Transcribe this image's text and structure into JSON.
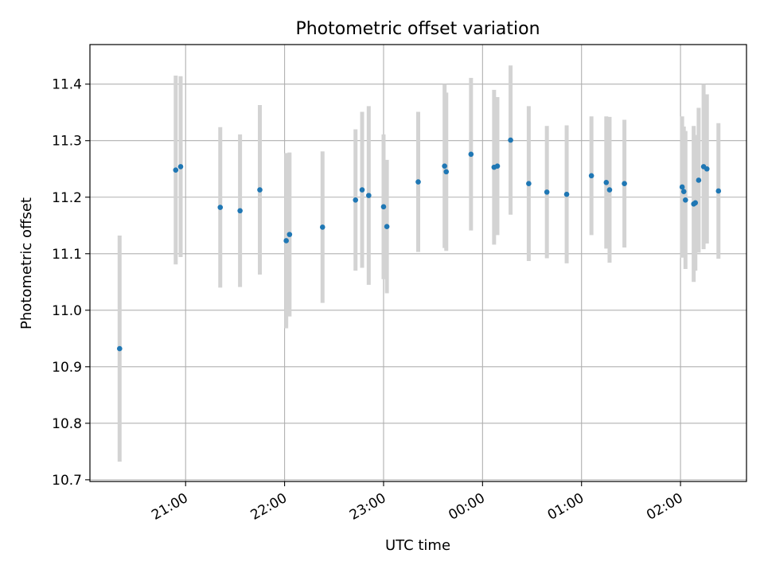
{
  "chart_data": {
    "type": "scatter",
    "title": "Photometric offset variation",
    "xlabel": "UTC time",
    "ylabel": "Photometric offset",
    "x_axis_kind": "time",
    "x_reference_date": "",
    "xlim": [
      "20:02",
      "26:40"
    ],
    "ylim": [
      10.697,
      11.47
    ],
    "grid": true,
    "legend": "none",
    "x_tick_labels": [
      "21:00",
      "22:00",
      "23:00",
      "00:00",
      "01:00",
      "02:00"
    ],
    "x_ticks": [
      "21:00",
      "22:00",
      "23:00",
      "24:00",
      "25:00",
      "26:00"
    ],
    "y_ticks": [
      10.7,
      10.8,
      10.9,
      11.0,
      11.1,
      11.2,
      11.3,
      11.4
    ],
    "y_tick_labels": [
      "10.7",
      "10.8",
      "10.9",
      "11.0",
      "11.1",
      "11.2",
      "11.3",
      "11.4"
    ],
    "colors": {
      "points": "#1f77b4",
      "errorbars": "#d3d3d3",
      "grid": "#b0b0b0"
    },
    "points": [
      {
        "t": "20:20",
        "y": 10.932,
        "err": 0.2
      },
      {
        "t": "20:54",
        "y": 11.248,
        "err": 0.167
      },
      {
        "t": "20:57",
        "y": 11.254,
        "err": 0.16
      },
      {
        "t": "21:21",
        "y": 11.182,
        "err": 0.142
      },
      {
        "t": "21:33",
        "y": 11.176,
        "err": 0.135
      },
      {
        "t": "21:45",
        "y": 11.213,
        "err": 0.15
      },
      {
        "t": "22:01",
        "y": 11.123,
        "err": 0.155
      },
      {
        "t": "22:03",
        "y": 11.134,
        "err": 0.145
      },
      {
        "t": "22:23",
        "y": 11.147,
        "err": 0.134
      },
      {
        "t": "22:43",
        "y": 11.195,
        "err": 0.125
      },
      {
        "t": "22:47",
        "y": 11.213,
        "err": 0.138
      },
      {
        "t": "22:51",
        "y": 11.203,
        "err": 0.158
      },
      {
        "t": "23:00",
        "y": 11.183,
        "err": 0.128
      },
      {
        "t": "23:02",
        "y": 11.148,
        "err": 0.118
      },
      {
        "t": "23:21",
        "y": 11.227,
        "err": 0.124
      },
      {
        "t": "23:37",
        "y": 11.255,
        "err": 0.145
      },
      {
        "t": "23:38",
        "y": 11.245,
        "err": 0.14
      },
      {
        "t": "23:53",
        "y": 11.276,
        "err": 0.135
      },
      {
        "t": "24:07",
        "y": 11.253,
        "err": 0.137
      },
      {
        "t": "24:09",
        "y": 11.255,
        "err": 0.122
      },
      {
        "t": "24:17",
        "y": 11.301,
        "err": 0.132
      },
      {
        "t": "24:28",
        "y": 11.224,
        "err": 0.137
      },
      {
        "t": "24:39",
        "y": 11.209,
        "err": 0.117
      },
      {
        "t": "24:51",
        "y": 11.205,
        "err": 0.122
      },
      {
        "t": "25:06",
        "y": 11.238,
        "err": 0.105
      },
      {
        "t": "25:15",
        "y": 11.226,
        "err": 0.117
      },
      {
        "t": "25:17",
        "y": 11.213,
        "err": 0.129
      },
      {
        "t": "25:26",
        "y": 11.224,
        "err": 0.113
      },
      {
        "t": "26:01",
        "y": 11.218,
        "err": 0.125
      },
      {
        "t": "26:02",
        "y": 11.21,
        "err": 0.115
      },
      {
        "t": "26:03",
        "y": 11.195,
        "err": 0.122
      },
      {
        "t": "26:08",
        "y": 11.188,
        "err": 0.138
      },
      {
        "t": "26:09",
        "y": 11.19,
        "err": 0.12
      },
      {
        "t": "26:11",
        "y": 11.23,
        "err": 0.128
      },
      {
        "t": "26:14",
        "y": 11.254,
        "err": 0.146
      },
      {
        "t": "26:16",
        "y": 11.25,
        "err": 0.132
      },
      {
        "t": "26:23",
        "y": 11.211,
        "err": 0.12
      }
    ]
  }
}
